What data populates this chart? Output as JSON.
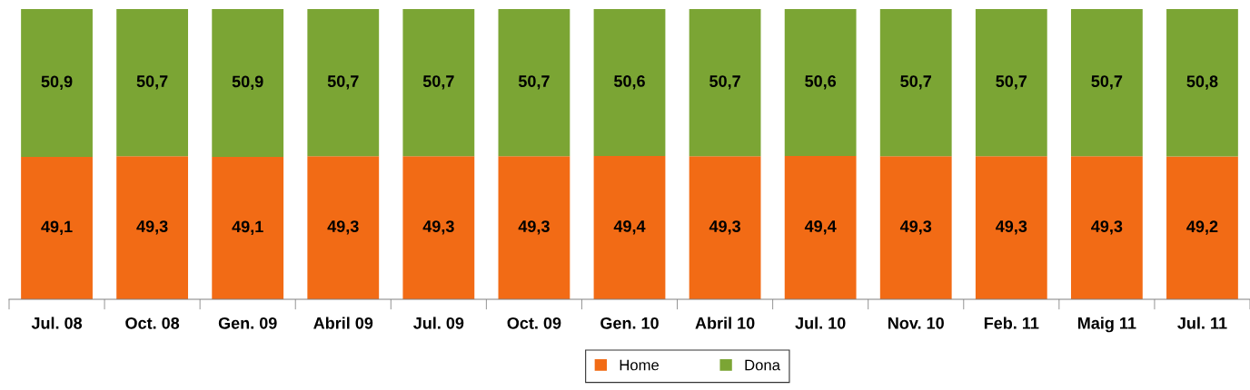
{
  "chart_data": {
    "type": "bar",
    "stacked": true,
    "categories": [
      "Jul. 08",
      "Oct. 08",
      "Gen. 09",
      "Abril 09",
      "Jul. 09",
      "Oct. 09",
      "Gen. 10",
      "Abril 10",
      "Jul. 10",
      "Nov. 10",
      "Feb. 11",
      "Maig 11",
      "Jul. 11"
    ],
    "series": [
      {
        "name": "Home",
        "color": "#f26b15",
        "values": [
          49.1,
          49.3,
          49.1,
          49.3,
          49.3,
          49.3,
          49.4,
          49.3,
          49.4,
          49.3,
          49.3,
          49.3,
          49.2
        ],
        "value_labels": [
          "49,1",
          "49,3",
          "49,1",
          "49,3",
          "49,3",
          "49,3",
          "49,4",
          "49,3",
          "49,4",
          "49,3",
          "49,3",
          "49,3",
          "49,2"
        ]
      },
      {
        "name": "Dona",
        "color": "#7ba534",
        "values": [
          50.9,
          50.7,
          50.9,
          50.7,
          50.7,
          50.7,
          50.6,
          50.7,
          50.6,
          50.7,
          50.7,
          50.7,
          50.8
        ],
        "value_labels": [
          "50,9",
          "50,7",
          "50,9",
          "50,7",
          "50,7",
          "50,7",
          "50,6",
          "50,7",
          "50,6",
          "50,7",
          "50,7",
          "50,7",
          "50,8"
        ]
      }
    ],
    "legend": "bottom",
    "tick_labels": "x"
  }
}
